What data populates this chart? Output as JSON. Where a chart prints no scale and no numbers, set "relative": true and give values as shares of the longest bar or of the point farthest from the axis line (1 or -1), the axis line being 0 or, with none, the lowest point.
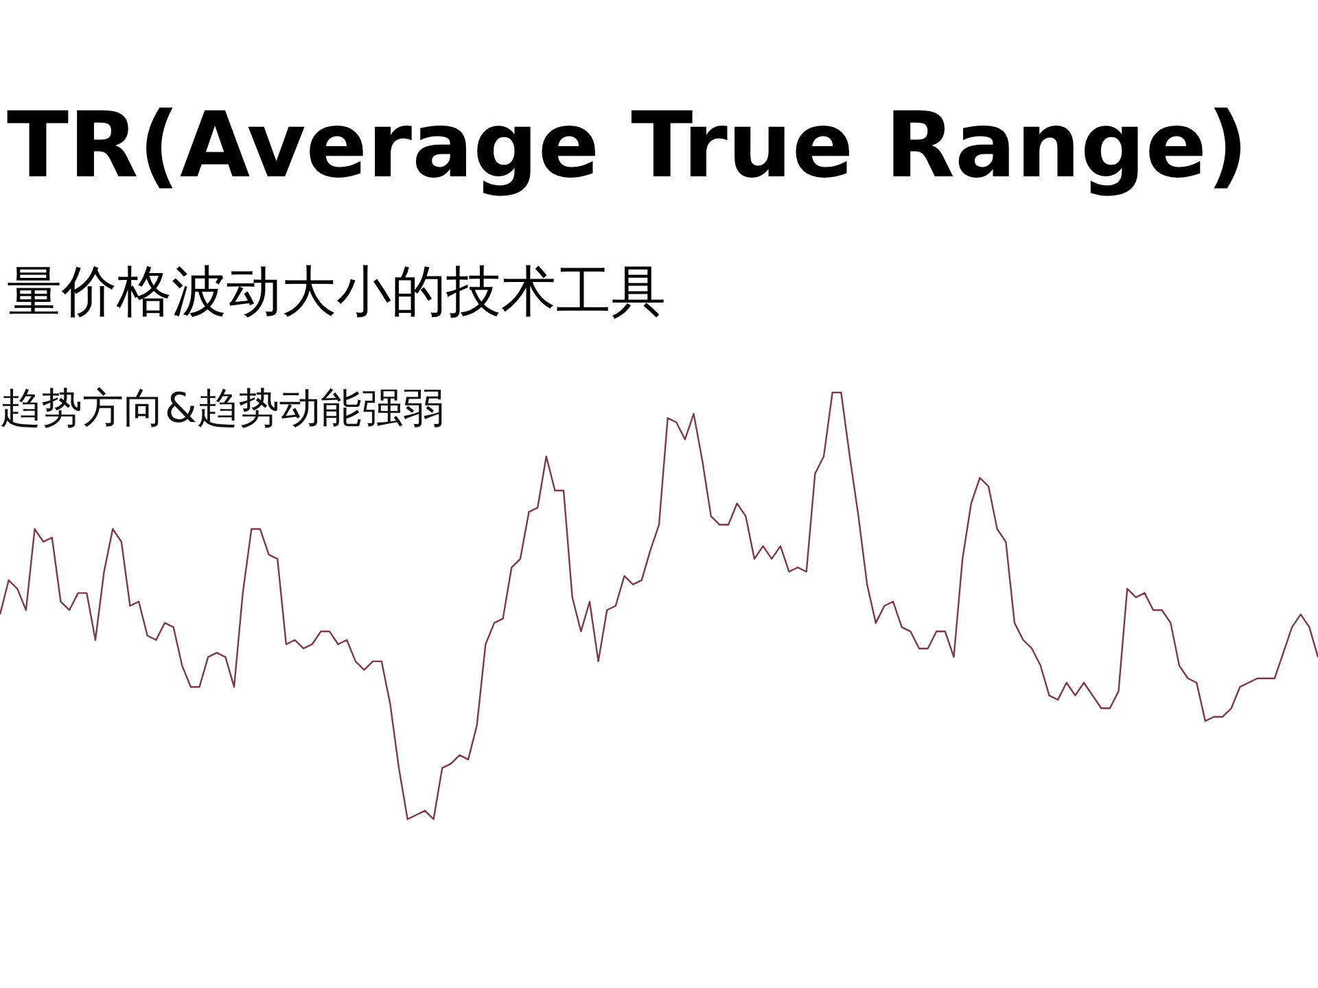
{
  "chart_data": {
    "type": "line",
    "title": "TR(Average True Range)",
    "subtitle": "量价格波动大小的技术工具",
    "annotations": [
      "趋势方向&趋势动能强弱"
    ],
    "relative": true,
    "categories": [
      null,
      null,
      null,
      null,
      null,
      null,
      null,
      null,
      null,
      null,
      null,
      null,
      null,
      null,
      null,
      null,
      null,
      null,
      null,
      null,
      null,
      null,
      null,
      null,
      null,
      null,
      null,
      null,
      null,
      null,
      null,
      null,
      null,
      null,
      null,
      null,
      null,
      null,
      null,
      null,
      null,
      null,
      null,
      null,
      null,
      null,
      null,
      null,
      null,
      null,
      null,
      null,
      null,
      null,
      null,
      null,
      null,
      null,
      null,
      null,
      null,
      null,
      null,
      null,
      null,
      null,
      null,
      null,
      null,
      null,
      null,
      null,
      null,
      null,
      null,
      null,
      null,
      null,
      null,
      null,
      null,
      null,
      null,
      null,
      null,
      null,
      null,
      null,
      null,
      null,
      null,
      null,
      null,
      null,
      null,
      null,
      null,
      null,
      null,
      null,
      null,
      null,
      null,
      null,
      null,
      null,
      null,
      null,
      null,
      null,
      null,
      null,
      null,
      null,
      null,
      null,
      null,
      null,
      null,
      null,
      null,
      null,
      null,
      null,
      null,
      null,
      null,
      null,
      null,
      null,
      null,
      null,
      null,
      null,
      null,
      null,
      null,
      null,
      null,
      null,
      null,
      null,
      null,
      null,
      null,
      null,
      null,
      null,
      null,
      null,
      null,
      null,
      null
    ],
    "series": [
      {
        "color": "#7a3a48",
        "values": [
          0.48,
          0.56,
          0.54,
          0.49,
          0.68,
          0.65,
          0.66,
          0.51,
          0.49,
          0.53,
          0.53,
          0.42,
          0.58,
          0.68,
          0.65,
          0.5,
          0.51,
          0.43,
          0.42,
          0.46,
          0.45,
          0.36,
          0.31,
          0.31,
          0.38,
          0.39,
          0.38,
          0.31,
          0.53,
          0.68,
          0.68,
          0.62,
          0.61,
          0.41,
          0.42,
          0.4,
          0.41,
          0.44,
          0.44,
          0.41,
          0.42,
          0.37,
          0.35,
          0.37,
          0.37,
          0.27,
          0.12,
          0,
          0.01,
          0.02,
          0,
          0.12,
          0.13,
          0.15,
          0.14,
          0.22,
          0.41,
          0.46,
          0.47,
          0.59,
          0.61,
          0.72,
          0.73,
          0.85,
          0.77,
          0.77,
          0.52,
          0.44,
          0.51,
          0.37,
          0.49,
          0.5,
          0.57,
          0.55,
          0.56,
          0.63,
          0.69,
          0.94,
          0.93,
          0.89,
          0.95,
          0.84,
          0.71,
          0.69,
          0.69,
          0.74,
          0.71,
          0.61,
          0.64,
          0.61,
          0.64,
          0.58,
          0.59,
          0.58,
          0.81,
          0.85,
          1,
          1,
          0.85,
          0.71,
          0.55,
          0.46,
          0.5,
          0.51,
          0.45,
          0.44,
          0.4,
          0.4,
          0.44,
          0.44,
          0.38,
          0.61,
          0.74,
          0.8,
          0.78,
          0.68,
          0.65,
          0.46,
          0.42,
          0.4,
          0.36,
          0.29,
          0.28,
          0.32,
          0.29,
          0.32,
          0.29,
          0.26,
          0.26,
          0.3,
          0.54,
          0.52,
          0.53,
          0.49,
          0.49,
          0.46,
          0.36,
          0.33,
          0.32,
          0.23,
          0.24,
          0.24,
          0.26,
          0.31,
          0.32,
          0.33,
          0.33,
          0.33,
          0.39,
          0.45,
          0.48,
          0.45,
          0.38
        ]
      }
    ]
  }
}
